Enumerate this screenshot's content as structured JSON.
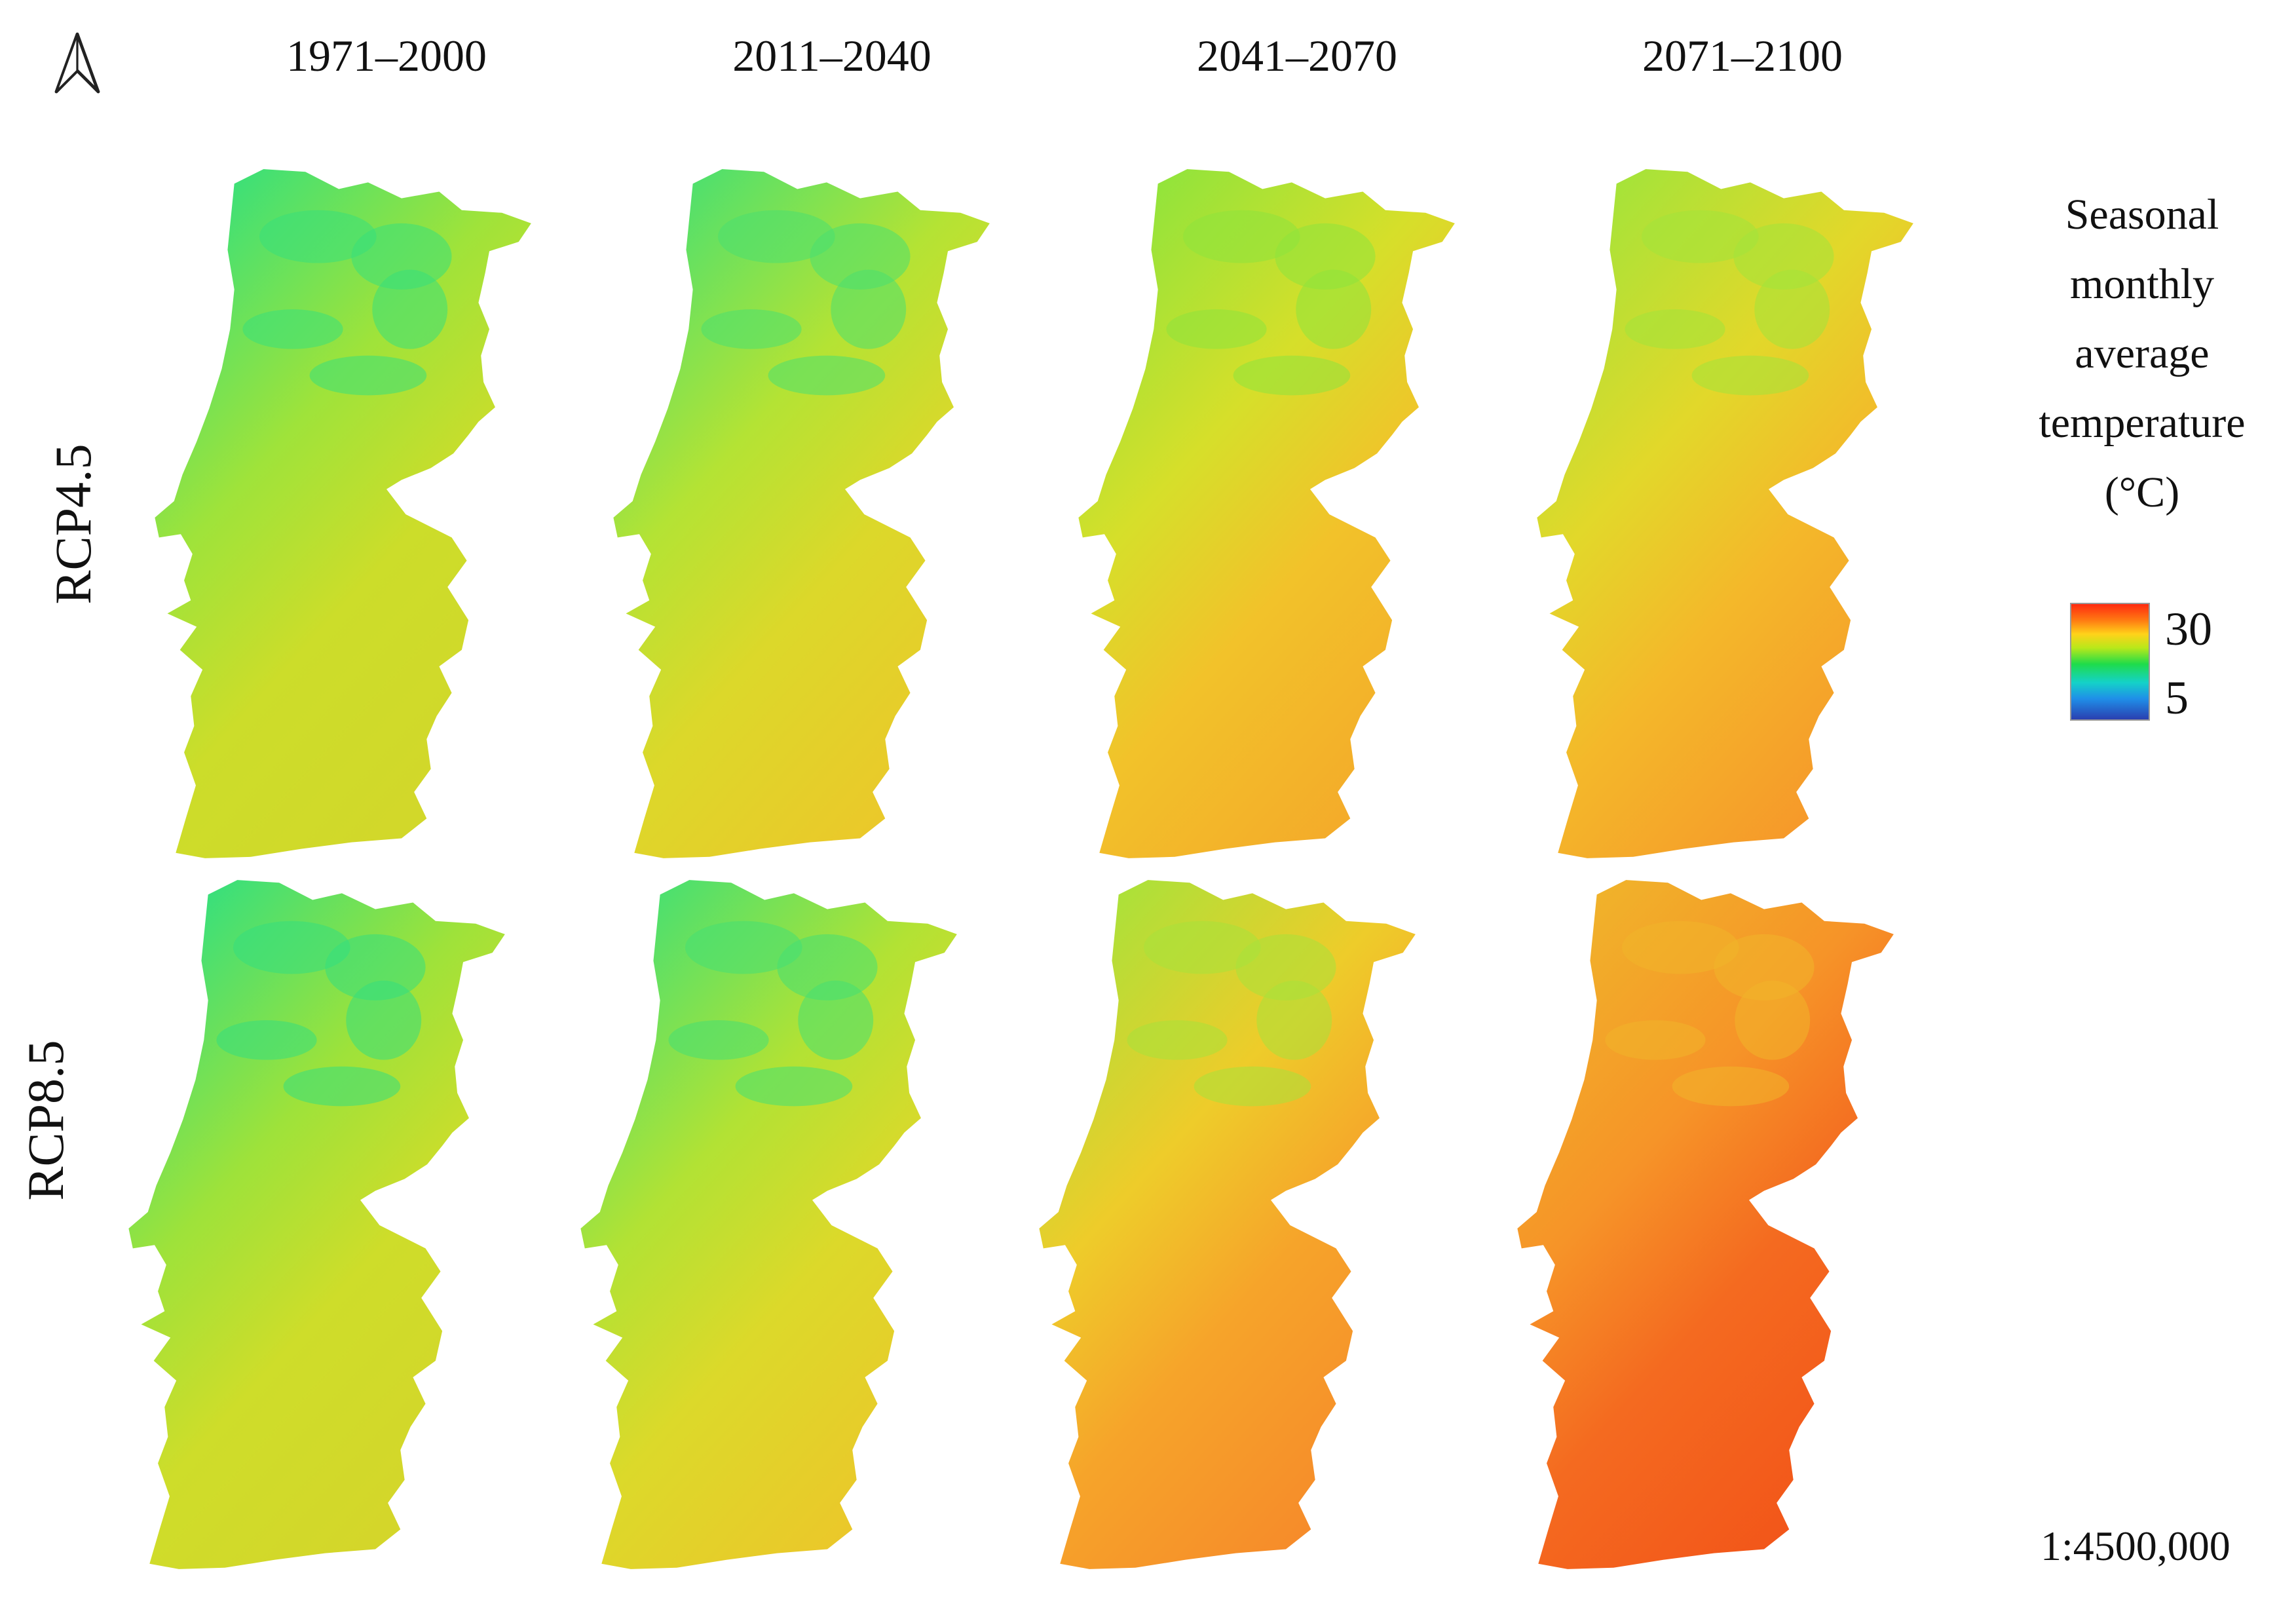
{
  "periods": [
    "1971–2000",
    "2011–2040",
    "2041–2070",
    "2071–2100"
  ],
  "scenarios": [
    "RCP4.5",
    "RCP8.5"
  ],
  "legend": {
    "title_lines": [
      "Seasonal",
      "monthly",
      "average",
      "temperature",
      "(°C)"
    ],
    "max_label": "30",
    "min_label": "5",
    "colors": [
      "#2a3fb0",
      "#1f8fe8",
      "#14d2c8",
      "#1fdc4a",
      "#b8e81a",
      "#ffd21a",
      "#ff7a12",
      "#ff2a10"
    ]
  },
  "scale": "1:4500,000",
  "north_arrow": "north-arrow-icon",
  "panels": [
    {
      "scenario": "RCP4.5",
      "period": "1971–2000",
      "north": "#38e07a",
      "mid": "#9fe33a",
      "south": "#ccdd2a",
      "southeast": "#d4d62a"
    },
    {
      "scenario": "RCP4.5",
      "period": "2011–2040",
      "north": "#4ae070",
      "mid": "#b4e334",
      "south": "#dcd82a",
      "southeast": "#eec52a"
    },
    {
      "scenario": "RCP4.5",
      "period": "2041–2070",
      "north": "#8ee43c",
      "mid": "#d6df2a",
      "south": "#f2c22a",
      "southeast": "#f4a62a"
    },
    {
      "scenario": "RCP4.5",
      "period": "2071–2100",
      "north": "#a2e43a",
      "mid": "#e2d82a",
      "south": "#f4b82a",
      "southeast": "#f6922a"
    },
    {
      "scenario": "RCP8.5",
      "period": "1971–2000",
      "north": "#34df7e",
      "mid": "#9ee23a",
      "south": "#cedd2a",
      "southeast": "#d6d42a"
    },
    {
      "scenario": "RCP8.5",
      "period": "2011–2040",
      "north": "#46e072",
      "mid": "#b2e234",
      "south": "#dcd92a",
      "southeast": "#eec42a"
    },
    {
      "scenario": "RCP8.5",
      "period": "2041–2070",
      "north": "#a8e23a",
      "mid": "#eecc2a",
      "south": "#f6a42a",
      "southeast": "#f6862a"
    },
    {
      "scenario": "RCP8.5",
      "period": "2071–2100",
      "north": "#f0b42a",
      "mid": "#f69428",
      "south": "#f46a20",
      "southeast": "#f25218"
    }
  ]
}
